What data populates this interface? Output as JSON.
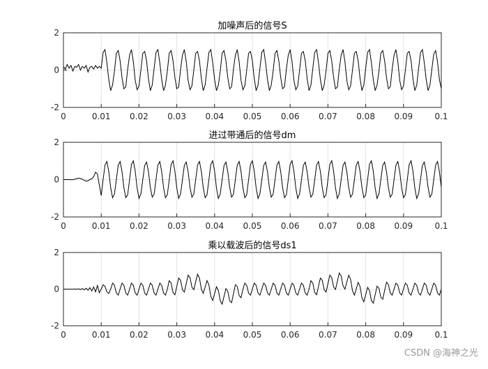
{
  "chart_data": [
    {
      "type": "line",
      "title": "加噪声后的信号S",
      "color": "#000000",
      "grid": true,
      "xlim": [
        0,
        0.1
      ],
      "xticks": [
        0,
        0.01,
        0.02,
        0.03,
        0.04,
        0.05,
        0.06,
        0.07,
        0.08,
        0.09,
        0.1
      ],
      "ylim": [
        -2,
        2
      ],
      "yticks": [
        -2,
        0,
        2
      ],
      "x": [
        0,
        0.0005,
        0.001,
        0.0015,
        0.002,
        0.0025,
        0.003,
        0.0035,
        0.004,
        0.0045,
        0.005,
        0.0055,
        0.006,
        0.0065,
        0.007,
        0.0075,
        0.008,
        0.0085,
        0.009,
        0.0095,
        0.01,
        0.0105,
        0.011,
        0.0115,
        0.012,
        0.0125,
        0.013,
        0.0135,
        0.014,
        0.0145,
        0.015,
        0.0155,
        0.016,
        0.0165,
        0.017,
        0.0175,
        0.018,
        0.0185,
        0.019,
        0.0195,
        0.02,
        0.0205,
        0.021,
        0.0215,
        0.022,
        0.0225,
        0.023,
        0.0235,
        0.024,
        0.0245,
        0.025,
        0.0255,
        0.026,
        0.0265,
        0.027,
        0.0275,
        0.028,
        0.0285,
        0.029,
        0.0295,
        0.03,
        0.0305,
        0.031,
        0.0315,
        0.032,
        0.0325,
        0.033,
        0.0335,
        0.034,
        0.0345,
        0.035,
        0.0355,
        0.036,
        0.0365,
        0.037,
        0.0375,
        0.038,
        0.0385,
        0.039,
        0.0395,
        0.04,
        0.0405,
        0.041,
        0.0415,
        0.042,
        0.0425,
        0.043,
        0.0435,
        0.044,
        0.0445,
        0.045,
        0.0455,
        0.046,
        0.0465,
        0.047,
        0.0475,
        0.048,
        0.0485,
        0.049,
        0.0495,
        0.05,
        0.0505,
        0.051,
        0.0515,
        0.052,
        0.0525,
        0.053,
        0.0535,
        0.054,
        0.0545,
        0.055,
        0.0555,
        0.056,
        0.0565,
        0.057,
        0.0575,
        0.058,
        0.0585,
        0.059,
        0.0595,
        0.06,
        0.0605,
        0.061,
        0.0615,
        0.062,
        0.0625,
        0.063,
        0.0635,
        0.064,
        0.0645,
        0.065,
        0.0655,
        0.066,
        0.0665,
        0.067,
        0.0675,
        0.068,
        0.0685,
        0.069,
        0.0695,
        0.07,
        0.0705,
        0.071,
        0.0715,
        0.072,
        0.0725,
        0.073,
        0.0735,
        0.074,
        0.0745,
        0.075,
        0.0755,
        0.076,
        0.0765,
        0.077,
        0.0775,
        0.078,
        0.0785,
        0.079,
        0.0795,
        0.08,
        0.0805,
        0.081,
        0.0815,
        0.082,
        0.0825,
        0.083,
        0.0835,
        0.084,
        0.0845,
        0.085,
        0.0855,
        0.086,
        0.0865,
        0.087,
        0.0875,
        0.088,
        0.0885,
        0.089,
        0.0895,
        0.09,
        0.0905,
        0.091,
        0.0915,
        0.092,
        0.0925,
        0.093,
        0.0935,
        0.094,
        0.0945,
        0.095,
        0.0955,
        0.096,
        0.0965,
        0.097,
        0.0975,
        0.098,
        0.0985,
        0.099,
        0.0995,
        0.1
      ],
      "values": [
        0.2,
        0.05,
        0.3,
        0.1,
        0.25,
        -0.05,
        0.2,
        0.15,
        0.3,
        0,
        0.2,
        0.1,
        0.25,
        -0.1,
        0.15,
        0.2,
        0.05,
        0.25,
        0.1,
        0.2,
        0.1,
        0.95,
        1.1,
        0.4,
        -0.5,
        -1.1,
        -0.8,
        -0.05,
        0.9,
        1.05,
        0.5,
        -0.4,
        -1,
        -0.9,
        0.05,
        0.8,
        1.1,
        0.45,
        -0.55,
        -1.05,
        -0.85,
        0,
        0.9,
        1,
        0.5,
        -0.45,
        -1.1,
        -0.8,
        0.1,
        0.95,
        1.1,
        0.4,
        -0.5,
        -1.1,
        -0.8,
        -0.05,
        0.9,
        1.05,
        0.5,
        -0.4,
        -1,
        -0.9,
        0.05,
        0.8,
        1.1,
        0.45,
        -0.55,
        -1.05,
        -0.85,
        0,
        0.9,
        1,
        0.5,
        -0.45,
        -1.1,
        -0.8,
        0.1,
        0.95,
        1.1,
        0.4,
        -0.5,
        -1.1,
        -0.8,
        -0.05,
        0.9,
        1.05,
        0.5,
        -0.4,
        -1,
        -0.9,
        0.05,
        0.8,
        1.1,
        0.45,
        -0.55,
        -1.05,
        -0.85,
        0,
        0.9,
        1,
        0.5,
        -0.45,
        -1.1,
        -0.8,
        0.1,
        0.95,
        1.1,
        0.4,
        -0.5,
        -1.1,
        -0.8,
        -0.05,
        0.9,
        1.05,
        0.5,
        -0.4,
        -1,
        -0.9,
        0.05,
        0.8,
        1.1,
        0.45,
        -0.55,
        -1.05,
        -0.85,
        0,
        0.9,
        1,
        0.5,
        -0.45,
        -1.1,
        -0.8,
        0.1,
        0.95,
        1.1,
        0.4,
        -0.5,
        -1.1,
        -0.8,
        -0.05,
        0.9,
        1.05,
        0.5,
        -0.4,
        -1,
        -0.9,
        0.05,
        0.8,
        1.1,
        0.45,
        -0.55,
        -1.05,
        -0.85,
        0,
        0.9,
        1,
        0.5,
        -0.45,
        -1.1,
        -0.8,
        0.1,
        0.95,
        1.1,
        0.4,
        -0.5,
        -1.1,
        -0.8,
        -0.05,
        0.9,
        1.05,
        0.5,
        -0.4,
        -1,
        -0.9,
        0.05,
        0.8,
        1.1,
        0.45,
        -0.55,
        -1.05,
        -0.85,
        0,
        0.9,
        1,
        0.5,
        -0.45,
        -1.1,
        -0.8,
        0.1,
        0.95,
        1.1,
        0.4,
        -0.5,
        -1.1,
        -0.8,
        0.05,
        0.85,
        1.05,
        0.45,
        -0.5,
        -1
      ]
    },
    {
      "type": "line",
      "title": "进过带通后的信号dm",
      "color": "#000000",
      "grid": true,
      "xlim": [
        0,
        0.1
      ],
      "xticks": [
        0,
        0.01,
        0.02,
        0.03,
        0.04,
        0.05,
        0.06,
        0.07,
        0.08,
        0.09,
        0.1
      ],
      "ylim": [
        -2,
        2
      ],
      "yticks": [
        -2,
        0,
        2
      ],
      "x": [
        0,
        0.0005,
        0.001,
        0.0015,
        0.002,
        0.0025,
        0.003,
        0.0035,
        0.004,
        0.0045,
        0.005,
        0.0055,
        0.006,
        0.0065,
        0.007,
        0.0075,
        0.008,
        0.0085,
        0.009,
        0.0095,
        0.01,
        0.0105,
        0.011,
        0.0115,
        0.012,
        0.0125,
        0.013,
        0.0135,
        0.014,
        0.0145,
        0.015,
        0.0155,
        0.016,
        0.0165,
        0.017,
        0.0175,
        0.018,
        0.0185,
        0.019,
        0.0195,
        0.02,
        0.0205,
        0.021,
        0.0215,
        0.022,
        0.0225,
        0.023,
        0.0235,
        0.024,
        0.0245,
        0.025,
        0.0255,
        0.026,
        0.0265,
        0.027,
        0.0275,
        0.028,
        0.0285,
        0.029,
        0.0295,
        0.03,
        0.0305,
        0.031,
        0.0315,
        0.032,
        0.0325,
        0.033,
        0.0335,
        0.034,
        0.0345,
        0.035,
        0.0355,
        0.036,
        0.0365,
        0.037,
        0.0375,
        0.038,
        0.0385,
        0.039,
        0.0395,
        0.04,
        0.0405,
        0.041,
        0.0415,
        0.042,
        0.0425,
        0.043,
        0.0435,
        0.044,
        0.0445,
        0.045,
        0.0455,
        0.046,
        0.0465,
        0.047,
        0.0475,
        0.048,
        0.0485,
        0.049,
        0.0495,
        0.05,
        0.0505,
        0.051,
        0.0515,
        0.052,
        0.0525,
        0.053,
        0.0535,
        0.054,
        0.0545,
        0.055,
        0.0555,
        0.056,
        0.0565,
        0.057,
        0.0575,
        0.058,
        0.0585,
        0.059,
        0.0595,
        0.06,
        0.0605,
        0.061,
        0.0615,
        0.062,
        0.0625,
        0.063,
        0.0635,
        0.064,
        0.0645,
        0.065,
        0.0655,
        0.066,
        0.0665,
        0.067,
        0.0675,
        0.068,
        0.0685,
        0.069,
        0.0695,
        0.07,
        0.0705,
        0.071,
        0.0715,
        0.072,
        0.0725,
        0.073,
        0.0735,
        0.074,
        0.0745,
        0.075,
        0.0755,
        0.076,
        0.0765,
        0.077,
        0.0775,
        0.078,
        0.0785,
        0.079,
        0.0795,
        0.08,
        0.0805,
        0.081,
        0.0815,
        0.082,
        0.0825,
        0.083,
        0.0835,
        0.084,
        0.0845,
        0.085,
        0.0855,
        0.086,
        0.0865,
        0.087,
        0.0875,
        0.088,
        0.0885,
        0.089,
        0.0895,
        0.09,
        0.0905,
        0.091,
        0.0915,
        0.092,
        0.0925,
        0.093,
        0.0935,
        0.094,
        0.0945,
        0.095,
        0.0955,
        0.096,
        0.0965,
        0.097,
        0.0975,
        0.098,
        0.0985,
        0.099,
        0.0995,
        0.1
      ],
      "values": [
        0,
        0,
        0,
        0,
        -0.01,
        0,
        0.02,
        0.05,
        0.08,
        0.06,
        0.02,
        -0.04,
        -0.08,
        -0.06,
        0,
        0.05,
        0.15,
        0.4,
        0.3,
        -0.3,
        -0.85,
        0,
        0.78,
        0.97,
        0.43,
        -0.43,
        -0.97,
        -0.78,
        0,
        0.78,
        0.97,
        0.43,
        -0.43,
        -0.97,
        -0.81,
        0,
        0.81,
        1.01,
        0.45,
        -0.45,
        -1.01,
        -0.76,
        0,
        0.76,
        0.94,
        0.42,
        -0.42,
        -0.94,
        -0.78,
        0,
        0.78,
        0.97,
        0.43,
        -0.43,
        -0.97,
        -0.81,
        0,
        0.81,
        1.01,
        0.45,
        -0.45,
        -1.01,
        -0.76,
        0,
        0.76,
        0.94,
        0.42,
        -0.42,
        -0.94,
        -0.78,
        0,
        0.78,
        0.97,
        0.43,
        -0.43,
        -0.97,
        -0.81,
        0,
        0.81,
        1.01,
        0.45,
        -0.45,
        -1.01,
        -0.76,
        0,
        0.76,
        0.94,
        0.42,
        -0.42,
        -0.94,
        -0.78,
        0,
        0.78,
        0.97,
        0.43,
        -0.43,
        -0.97,
        -0.81,
        0,
        0.81,
        1.01,
        0.45,
        -0.45,
        -1.01,
        -0.76,
        0,
        0.76,
        0.94,
        0.42,
        -0.42,
        -0.94,
        -0.78,
        0,
        0.78,
        0.97,
        0.43,
        -0.43,
        -0.97,
        -0.81,
        0,
        0.81,
        1.01,
        0.45,
        -0.45,
        -1.01,
        -0.76,
        0,
        0.76,
        0.94,
        0.42,
        -0.42,
        -0.94,
        -0.78,
        0,
        0.78,
        0.97,
        0.43,
        -0.43,
        -0.97,
        -0.81,
        0,
        0.81,
        1.01,
        0.45,
        -0.45,
        -1.01,
        -0.76,
        0,
        0.76,
        0.94,
        0.42,
        -0.42,
        -0.94,
        -0.78,
        0,
        0.78,
        0.97,
        0.43,
        -0.43,
        -0.97,
        -0.81,
        0,
        0.81,
        1.01,
        0.45,
        -0.45,
        -1.01,
        -0.76,
        0,
        0.76,
        0.94,
        0.42,
        -0.42,
        -0.94,
        -0.78,
        0,
        0.78,
        0.97,
        0.43,
        -0.43,
        -0.97,
        -0.81,
        0,
        0.81,
        1.01,
        0.45,
        -0.45,
        -1.01,
        -0.76,
        0,
        0.76,
        0.94,
        0.42,
        -0.42,
        -0.94,
        -0.78,
        0,
        0.78,
        0.97,
        0.43,
        -0.43
      ]
    },
    {
      "type": "line",
      "title": "乘以载波后的信号ds1",
      "color": "#000000",
      "grid": true,
      "xlim": [
        0,
        0.1
      ],
      "xticks": [
        0,
        0.01,
        0.02,
        0.03,
        0.04,
        0.05,
        0.06,
        0.07,
        0.08,
        0.09,
        0.1
      ],
      "ylim": [
        -2,
        2
      ],
      "yticks": [
        -2,
        0,
        2
      ],
      "x": [
        0,
        0.0005,
        0.001,
        0.0015,
        0.002,
        0.0025,
        0.003,
        0.0035,
        0.004,
        0.0045,
        0.005,
        0.0055,
        0.006,
        0.0065,
        0.007,
        0.0075,
        0.008,
        0.0085,
        0.009,
        0.0095,
        0.01,
        0.0105,
        0.011,
        0.0115,
        0.012,
        0.0125,
        0.013,
        0.0135,
        0.014,
        0.0145,
        0.015,
        0.0155,
        0.016,
        0.0165,
        0.017,
        0.0175,
        0.018,
        0.0185,
        0.019,
        0.0195,
        0.02,
        0.0205,
        0.021,
        0.0215,
        0.022,
        0.0225,
        0.023,
        0.0235,
        0.024,
        0.0245,
        0.025,
        0.0255,
        0.026,
        0.0265,
        0.027,
        0.0275,
        0.028,
        0.0285,
        0.029,
        0.0295,
        0.03,
        0.0305,
        0.031,
        0.0315,
        0.032,
        0.0325,
        0.033,
        0.0335,
        0.034,
        0.0345,
        0.035,
        0.0355,
        0.036,
        0.0365,
        0.037,
        0.0375,
        0.038,
        0.0385,
        0.039,
        0.0395,
        0.04,
        0.0405,
        0.041,
        0.0415,
        0.042,
        0.0425,
        0.043,
        0.0435,
        0.044,
        0.0445,
        0.045,
        0.0455,
        0.046,
        0.0465,
        0.047,
        0.0475,
        0.048,
        0.0485,
        0.049,
        0.0495,
        0.05,
        0.0505,
        0.051,
        0.0515,
        0.052,
        0.0525,
        0.053,
        0.0535,
        0.054,
        0.0545,
        0.055,
        0.0555,
        0.056,
        0.0565,
        0.057,
        0.0575,
        0.058,
        0.0585,
        0.059,
        0.0595,
        0.06,
        0.0605,
        0.061,
        0.0615,
        0.062,
        0.0625,
        0.063,
        0.0635,
        0.064,
        0.0645,
        0.065,
        0.0655,
        0.066,
        0.0665,
        0.067,
        0.0675,
        0.068,
        0.0685,
        0.069,
        0.0695,
        0.07,
        0.0705,
        0.071,
        0.0715,
        0.072,
        0.0725,
        0.073,
        0.0735,
        0.074,
        0.0745,
        0.075,
        0.0755,
        0.076,
        0.0765,
        0.077,
        0.0775,
        0.078,
        0.0785,
        0.079,
        0.0795,
        0.08,
        0.0805,
        0.081,
        0.0815,
        0.082,
        0.0825,
        0.083,
        0.0835,
        0.084,
        0.0845,
        0.085,
        0.0855,
        0.086,
        0.0865,
        0.087,
        0.0875,
        0.088,
        0.0885,
        0.089,
        0.0895,
        0.09,
        0.0905,
        0.091,
        0.0915,
        0.092,
        0.0925,
        0.093,
        0.0935,
        0.094,
        0.0945,
        0.095,
        0.0955,
        0.096,
        0.0965,
        0.097,
        0.0975,
        0.098,
        0.0985,
        0.099,
        0.0995,
        0.1
      ],
      "values": [
        0,
        0,
        0,
        0,
        0,
        0,
        0.01,
        -0.01,
        0.02,
        -0.02,
        0.03,
        -0.04,
        0.05,
        -0.06,
        0.08,
        -0.1,
        0.12,
        -0.15,
        0.2,
        -0.2,
        0,
        0.24,
        0.15,
        -0.15,
        -0.24,
        0,
        0.33,
        0.21,
        -0.21,
        -0.33,
        0,
        0.33,
        0.21,
        -0.21,
        -0.33,
        0,
        0.33,
        0.21,
        -0.21,
        -0.33,
        0,
        0.33,
        0.21,
        -0.21,
        -0.33,
        0,
        0.33,
        0.21,
        -0.21,
        -0.33,
        0,
        0.33,
        0.21,
        -0.21,
        -0.33,
        0,
        0.46,
        0.33,
        -0.18,
        -0.31,
        0.15,
        0.61,
        0.48,
        -0.03,
        -0.16,
        0.3,
        0.76,
        0.63,
        0.11,
        -0.03,
        0.4,
        0.81,
        0.6,
        0,
        -0.23,
        0.12,
        0.47,
        0.23,
        -0.39,
        -0.62,
        -0.25,
        0.13,
        -0.07,
        -0.64,
        -0.82,
        -0.4,
        0.03,
        -0.12,
        -0.63,
        -0.74,
        -0.25,
        0.24,
        0.14,
        -0.35,
        -0.47,
        -0.01,
        0.33,
        0.21,
        -0.21,
        -0.33,
        0,
        0.33,
        0.21,
        -0.21,
        -0.33,
        0,
        0.33,
        0.21,
        -0.21,
        -0.33,
        0,
        0.33,
        0.21,
        -0.21,
        -0.33,
        0,
        0.33,
        0.21,
        -0.21,
        -0.33,
        0,
        0.33,
        0.21,
        -0.21,
        -0.33,
        0,
        0.33,
        0.21,
        -0.21,
        -0.33,
        0,
        0.46,
        0.33,
        -0.18,
        -0.31,
        0.15,
        0.61,
        0.48,
        -0.03,
        -0.16,
        0.3,
        0.76,
        0.63,
        0.12,
        -0.02,
        0.43,
        0.88,
        0.72,
        0.18,
        0,
        0.39,
        0.76,
        0.53,
        -0.09,
        -0.33,
        0.02,
        0.37,
        0.14,
        -0.47,
        -0.69,
        -0.3,
        0.1,
        -0.08,
        -0.62,
        -0.77,
        -0.31,
        0.16,
        0.05,
        -0.44,
        -0.55,
        -0.08,
        0.38,
        0.25,
        -0.21,
        -0.33,
        0,
        0.33,
        0.21,
        -0.21,
        -0.33,
        0,
        0.33,
        0.21,
        -0.21,
        -0.33,
        0,
        0.33,
        0.21,
        -0.21,
        -0.33,
        0,
        0.33,
        0.21,
        -0.21,
        -0.33,
        0,
        0.33,
        0.21,
        -0.21,
        -0.33,
        0
      ]
    }
  ],
  "watermark": "CSDN @海神之光"
}
